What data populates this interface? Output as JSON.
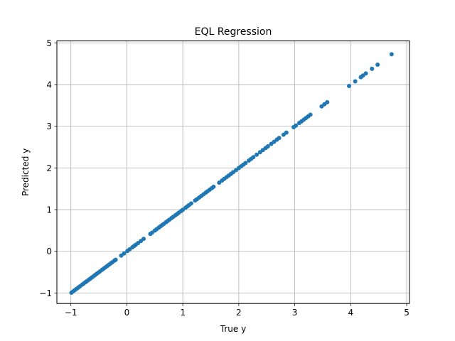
{
  "chart_data": {
    "type": "scatter",
    "title": "EQL Regression",
    "xlabel": "True y",
    "ylabel": "Predicted y",
    "xlim": [
      -1.25,
      5.05
    ],
    "ylim": [
      -1.25,
      5.05
    ],
    "xticks": [
      -1,
      0,
      1,
      2,
      3,
      4,
      5
    ],
    "yticks": [
      -1,
      0,
      1,
      2,
      3,
      4,
      5
    ],
    "xtick_labels": [
      "−1",
      "0",
      "1",
      "2",
      "3",
      "4",
      "5"
    ],
    "ytick_labels": [
      "−1",
      "0",
      "1",
      "2",
      "3",
      "4",
      "5"
    ],
    "grid": true,
    "point_color": "#1f77b4",
    "series": [
      {
        "x": [
          -0.99,
          -0.96,
          -0.93,
          -0.9,
          -0.87,
          -0.84,
          -0.8,
          -0.77,
          -0.74,
          -0.72,
          -0.69,
          -0.66,
          -0.63,
          -0.6,
          -0.57,
          -0.54,
          -0.51,
          -0.48,
          -0.44,
          -0.41,
          -0.38,
          -0.35,
          -0.32,
          -0.29,
          -0.26,
          -0.22,
          -0.2,
          -0.1,
          -0.05,
          0.01,
          0.05,
          0.1,
          0.13,
          0.16,
          0.2,
          0.25,
          0.3,
          0.42,
          0.45,
          0.5,
          0.53,
          0.57,
          0.6,
          0.63,
          0.66,
          0.7,
          0.73,
          0.76,
          0.8,
          0.83,
          0.87,
          0.9,
          0.93,
          0.97,
          1.0,
          1.05,
          1.08,
          1.11,
          1.15,
          1.22,
          1.25,
          1.29,
          1.33,
          1.37,
          1.41,
          1.44,
          1.48,
          1.52,
          1.55,
          1.65,
          1.7,
          1.74,
          1.78,
          1.82,
          1.86,
          1.9,
          1.95,
          2.0,
          2.04,
          2.08,
          2.12,
          2.18,
          2.22,
          2.26,
          2.32,
          2.38,
          2.43,
          2.48,
          2.52,
          2.58,
          2.63,
          2.68,
          2.72,
          2.8,
          2.85,
          2.98,
          3.02,
          3.08,
          3.12,
          3.16,
          3.2,
          3.24,
          3.28,
          3.48,
          3.53,
          3.58,
          3.97,
          4.08,
          4.18,
          4.22,
          4.27,
          4.38,
          4.48,
          4.73
        ],
        "y": [
          -0.99,
          -0.96,
          -0.93,
          -0.9,
          -0.87,
          -0.84,
          -0.8,
          -0.77,
          -0.74,
          -0.72,
          -0.69,
          -0.66,
          -0.63,
          -0.6,
          -0.57,
          -0.54,
          -0.51,
          -0.48,
          -0.44,
          -0.41,
          -0.38,
          -0.35,
          -0.32,
          -0.29,
          -0.26,
          -0.22,
          -0.2,
          -0.1,
          -0.05,
          0.01,
          0.05,
          0.1,
          0.13,
          0.16,
          0.2,
          0.25,
          0.3,
          0.42,
          0.45,
          0.5,
          0.53,
          0.57,
          0.6,
          0.63,
          0.66,
          0.7,
          0.73,
          0.76,
          0.8,
          0.83,
          0.87,
          0.9,
          0.93,
          0.97,
          1.0,
          1.05,
          1.08,
          1.11,
          1.15,
          1.22,
          1.25,
          1.29,
          1.33,
          1.37,
          1.41,
          1.44,
          1.48,
          1.52,
          1.55,
          1.65,
          1.7,
          1.74,
          1.78,
          1.82,
          1.86,
          1.9,
          1.95,
          2.0,
          2.04,
          2.08,
          2.12,
          2.18,
          2.22,
          2.26,
          2.32,
          2.38,
          2.43,
          2.48,
          2.52,
          2.58,
          2.63,
          2.68,
          2.72,
          2.8,
          2.85,
          2.98,
          3.02,
          3.08,
          3.12,
          3.16,
          3.2,
          3.24,
          3.28,
          3.48,
          3.53,
          3.58,
          3.97,
          4.08,
          4.18,
          4.22,
          4.27,
          4.38,
          4.48,
          4.73
        ]
      }
    ]
  }
}
